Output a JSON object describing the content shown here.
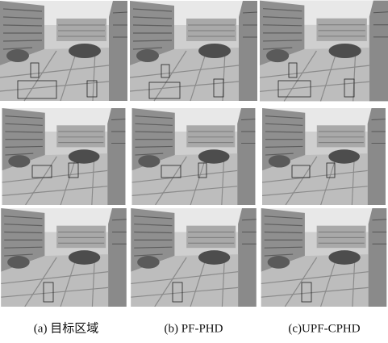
{
  "captions": [
    "(a) 目标区域",
    "(b) PF-PHD",
    "(c)UPF-CPHD"
  ]
}
